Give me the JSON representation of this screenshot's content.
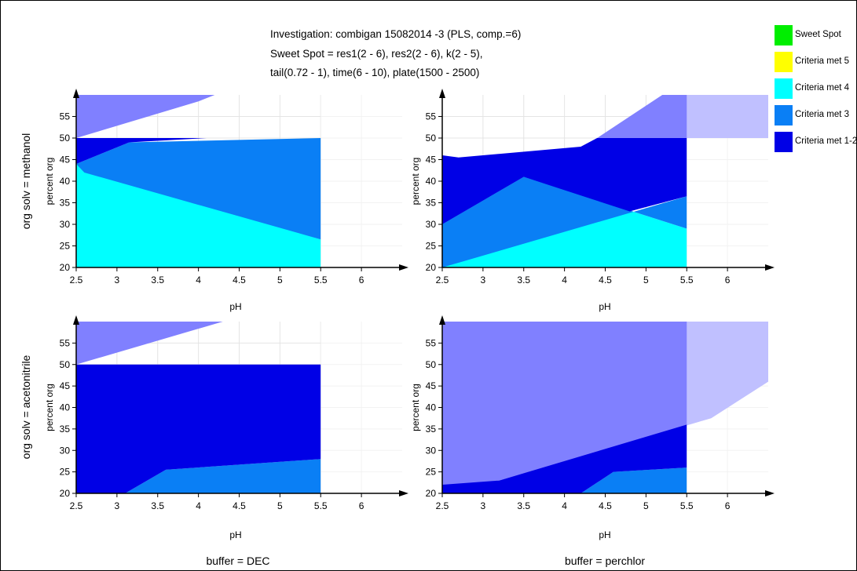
{
  "title": {
    "line1": "Investigation: combigan 15082014 -3 (PLS, comp.=6)",
    "line2": "Sweet Spot = res1(2 - 6), res2(2 - 6), k(2 - 5),",
    "line3": "tail(0.72 - 1), time(6 - 10), plate(1500 - 2500)"
  },
  "legend": [
    {
      "label": "Sweet Spot",
      "color": "#00ee00"
    },
    {
      "label": "Criteria met 5",
      "color": "#ffff00"
    },
    {
      "label": "Criteria met 4",
      "color": "#00ffff"
    },
    {
      "label": "Criteria met 3",
      "color": "#0a7ff5"
    },
    {
      "label": "Criteria met 1-2",
      "color": "#0000e6"
    }
  ],
  "row_labels": [
    "org solv = methanol",
    "org solv = acetonitrile"
  ],
  "col_labels": [
    "buffer = DEC",
    "buffer = perchlor"
  ],
  "chart_data": [
    {
      "type": "area",
      "panel": "methanol / DEC",
      "xlabel": "pH",
      "ylabel": "percent org",
      "xlim": [
        2.5,
        6.5
      ],
      "ylim": [
        20,
        60
      ],
      "xticks": [
        "2.5",
        "3",
        "3.5",
        "4",
        "4.5",
        "5",
        "5.5",
        "6"
      ],
      "yticks": [
        "20",
        "25",
        "30",
        "35",
        "40",
        "45",
        "50",
        "55"
      ],
      "regions": [
        {
          "level": "Criteria met 4",
          "polygon": [
            [
              2.5,
              20
            ],
            [
              5.5,
              20
            ],
            [
              5.5,
              26.5
            ],
            [
              2.5,
              44
            ]
          ]
        },
        {
          "level": "Criteria met 3",
          "polygon": [
            [
              2.5,
              44
            ],
            [
              2.6,
              42
            ],
            [
              5.5,
              26.5
            ],
            [
              5.5,
              50
            ],
            [
              3.15,
              49
            ]
          ]
        },
        {
          "level": "Criteria met 1-2",
          "polygon": [
            [
              2.5,
              44
            ],
            [
              3.15,
              49
            ],
            [
              4.1,
              50
            ],
            [
              2.5,
              50
            ]
          ]
        }
      ]
    },
    {
      "type": "area",
      "panel": "methanol / perchlor",
      "xlabel": "pH",
      "ylabel": "percent org",
      "xlim": [
        2.5,
        6.5
      ],
      "ylim": [
        20,
        60
      ],
      "xticks": [
        "2.5",
        "3",
        "3.5",
        "4",
        "4.5",
        "5",
        "5.5",
        "6"
      ],
      "yticks": [
        "20",
        "25",
        "30",
        "35",
        "40",
        "45",
        "50",
        "55"
      ],
      "regions": [
        {
          "level": "Criteria met 4",
          "polygon": [
            [
              2.5,
              20
            ],
            [
              5.5,
              20
            ],
            [
              5.5,
              29
            ],
            [
              3.5,
              41
            ],
            [
              2.5,
              30
            ]
          ]
        },
        {
          "level": "Criteria met 3",
          "polygon": [
            [
              2.5,
              30
            ],
            [
              3.5,
              41
            ],
            [
              5.5,
              29
            ],
            [
              5.5,
              36.5
            ],
            [
              2.5,
              20
            ]
          ]
        },
        {
          "level": "Criteria met 1-2",
          "polygon": [
            [
              2.5,
              46
            ],
            [
              2.7,
              45.5
            ],
            [
              4.2,
              48
            ],
            [
              4.4,
              50
            ],
            [
              5.5,
              50
            ],
            [
              5.5,
              36.5
            ],
            [
              4.8,
              33
            ],
            [
              3.5,
              41
            ],
            [
              2.5,
              30
            ]
          ]
        }
      ]
    },
    {
      "type": "area",
      "panel": "acetonitrile / DEC",
      "xlabel": "pH",
      "ylabel": "percent org",
      "xlim": [
        2.5,
        6.5
      ],
      "ylim": [
        20,
        60
      ],
      "xticks": [
        "2.5",
        "3",
        "3.5",
        "4",
        "4.5",
        "5",
        "5.5",
        "6"
      ],
      "yticks": [
        "20",
        "25",
        "30",
        "35",
        "40",
        "45",
        "50",
        "55"
      ],
      "regions": [
        {
          "level": "Criteria met 3",
          "polygon": [
            [
              3.1,
              20
            ],
            [
              5.5,
              20
            ],
            [
              5.5,
              28
            ],
            [
              3.6,
              25.5
            ]
          ]
        },
        {
          "level": "Criteria met 1-2",
          "polygon": [
            [
              2.5,
              20
            ],
            [
              3.1,
              20
            ],
            [
              3.6,
              25.5
            ],
            [
              5.5,
              28
            ],
            [
              5.5,
              50
            ],
            [
              2.5,
              50
            ]
          ]
        }
      ]
    },
    {
      "type": "area",
      "panel": "acetonitrile / perchlor",
      "xlabel": "pH",
      "ylabel": "percent org",
      "xlim": [
        2.5,
        6.5
      ],
      "ylim": [
        20,
        60
      ],
      "xticks": [
        "2.5",
        "3",
        "3.5",
        "4",
        "4.5",
        "5",
        "5.5",
        "6"
      ],
      "yticks": [
        "20",
        "25",
        "30",
        "35",
        "40",
        "45",
        "50",
        "55"
      ],
      "regions": [
        {
          "level": "Criteria met 3",
          "polygon": [
            [
              4.2,
              20
            ],
            [
              5.5,
              20
            ],
            [
              5.5,
              26
            ],
            [
              4.6,
              25
            ]
          ]
        },
        {
          "level": "Criteria met 1-2",
          "polygon": [
            [
              2.5,
              20
            ],
            [
              4.2,
              20
            ],
            [
              4.6,
              25
            ],
            [
              5.5,
              26
            ],
            [
              5.5,
              36
            ],
            [
              3.2,
              23
            ],
            [
              2.5,
              22
            ]
          ]
        }
      ]
    }
  ]
}
